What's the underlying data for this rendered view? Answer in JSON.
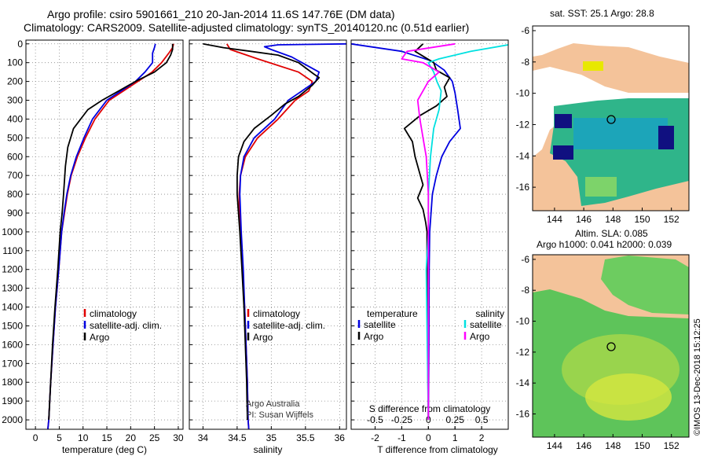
{
  "header": {
    "title_line1": "Argo profile: csiro 5901661_210 20-Jan-2014 11.6S 147.76E (DM data)",
    "title_line2": "Climatology: CARS2009. Satellite-adjusted climatology: synTS_20140120.nc (0.51d earlier)"
  },
  "maps": {
    "sst_title": "sat. SST: 25.1 Argo: 28.8",
    "sla_title1": "Altim. SLA: 0.085",
    "sla_title2": "Argo h1000: 0.041 h2000: 0.039",
    "lon_ticks": [
      "144",
      "146",
      "148",
      "150",
      "152"
    ],
    "lat_ticks": [
      "-6",
      "-8",
      "-10",
      "-12",
      "-14",
      "-16"
    ]
  },
  "credits": {
    "stamp": "©IMOS 13-Dec-2018 15:12:25",
    "line1": "Argo Australia",
    "line2": "PI: Susan Wijffels"
  },
  "colors": {
    "climatology": "#e00000",
    "satellite": "#0000e0",
    "argo": "#000000",
    "salinity_satellite": "#00e0e0",
    "salinity_argo": "#ff00ff"
  },
  "chart_data": [
    {
      "type": "line",
      "xlabel": "temperature (deg C)",
      "ylabel": "depth",
      "xlim": [
        -2,
        31
      ],
      "ylim": [
        2050,
        -20
      ],
      "xticks": [
        "0",
        "5",
        "10",
        "15",
        "20",
        "25",
        "30"
      ],
      "yticks": [
        "0",
        "100",
        "200",
        "300",
        "400",
        "500",
        "600",
        "700",
        "800",
        "900",
        "1000",
        "1100",
        "1200",
        "1300",
        "1400",
        "1500",
        "1600",
        "1700",
        "1800",
        "1900",
        "2000"
      ],
      "legend": [
        "climatology",
        "satellite-adj. clim.",
        "Argo"
      ],
      "series": [
        {
          "name": "climatology",
          "color_key": "climatology",
          "points": [
            [
              29.0,
              0
            ],
            [
              28.8,
              20
            ],
            [
              28.0,
              50
            ],
            [
              26.5,
              100
            ],
            [
              24.5,
              150
            ],
            [
              21.5,
              200
            ],
            [
              18.5,
              250
            ],
            [
              15.5,
              300
            ],
            [
              12.5,
              400
            ],
            [
              10.5,
              500
            ],
            [
              8.8,
              600
            ],
            [
              7.5,
              700
            ],
            [
              6.7,
              800
            ],
            [
              6.1,
              900
            ],
            [
              5.5,
              1000
            ],
            [
              4.9,
              1200
            ],
            [
              4.2,
              1400
            ],
            [
              3.7,
              1600
            ],
            [
              3.2,
              1800
            ],
            [
              2.8,
              2000
            ],
            [
              2.6,
              2050
            ]
          ]
        },
        {
          "name": "satellite-adj. clim.",
          "color_key": "satellite",
          "points": [
            [
              25.2,
              0
            ],
            [
              25.0,
              20
            ],
            [
              24.6,
              50
            ],
            [
              24.6,
              100
            ],
            [
              23.0,
              150
            ],
            [
              21.0,
              200
            ],
            [
              18.0,
              250
            ],
            [
              15.0,
              300
            ],
            [
              12.0,
              400
            ],
            [
              10.2,
              500
            ],
            [
              8.6,
              600
            ],
            [
              7.4,
              700
            ],
            [
              6.6,
              800
            ],
            [
              6.0,
              900
            ],
            [
              5.5,
              1000
            ],
            [
              4.9,
              1200
            ],
            [
              4.2,
              1400
            ],
            [
              3.7,
              1600
            ],
            [
              3.2,
              1800
            ],
            [
              2.8,
              2000
            ],
            [
              2.6,
              2050
            ]
          ]
        },
        {
          "name": "Argo",
          "color_key": "argo",
          "points": [
            [
              28.8,
              0
            ],
            [
              28.8,
              30
            ],
            [
              28.4,
              60
            ],
            [
              27.5,
              100
            ],
            [
              25.0,
              150
            ],
            [
              21.0,
              200
            ],
            [
              17.5,
              250
            ],
            [
              14.0,
              300
            ],
            [
              11.0,
              350
            ],
            [
              8.0,
              450
            ],
            [
              6.8,
              550
            ],
            [
              6.3,
              650
            ],
            [
              5.9,
              800
            ],
            [
              5.6,
              900
            ],
            [
              5.2,
              1000
            ],
            [
              4.7,
              1200
            ],
            [
              4.1,
              1400
            ],
            [
              3.6,
              1600
            ],
            [
              3.2,
              1800
            ],
            [
              2.8,
              2000
            ]
          ]
        }
      ]
    },
    {
      "type": "line",
      "xlabel": "salinity",
      "xlim": [
        33.8,
        36.1
      ],
      "ylim": [
        2050,
        -20
      ],
      "xticks": [
        "34",
        "34.5",
        "35",
        "35.5",
        "36"
      ],
      "legend": [
        "climatology",
        "satellite-adj. clim.",
        "Argo"
      ],
      "series": [
        {
          "name": "climatology",
          "color_key": "climatology",
          "points": [
            [
              34.35,
              0
            ],
            [
              34.4,
              30
            ],
            [
              34.8,
              80
            ],
            [
              35.4,
              150
            ],
            [
              35.6,
              200
            ],
            [
              35.55,
              250
            ],
            [
              35.35,
              300
            ],
            [
              35.1,
              400
            ],
            [
              34.8,
              500
            ],
            [
              34.62,
              600
            ],
            [
              34.55,
              700
            ],
            [
              34.53,
              800
            ],
            [
              34.53,
              900
            ],
            [
              34.55,
              1000
            ],
            [
              34.58,
              1200
            ],
            [
              34.61,
              1400
            ],
            [
              34.63,
              1600
            ],
            [
              34.65,
              1800
            ],
            [
              34.66,
              2000
            ],
            [
              34.67,
              2050
            ]
          ]
        },
        {
          "name": "satellite-adj. clim.",
          "color_key": "satellite",
          "points": [
            [
              36.1,
              0
            ],
            [
              35.1,
              5
            ],
            [
              34.9,
              15
            ],
            [
              35.0,
              30
            ],
            [
              35.3,
              70
            ],
            [
              35.7,
              150
            ],
            [
              35.65,
              200
            ],
            [
              35.45,
              250
            ],
            [
              35.25,
              300
            ],
            [
              35.05,
              400
            ],
            [
              34.75,
              500
            ],
            [
              34.6,
              600
            ],
            [
              34.55,
              700
            ],
            [
              34.54,
              800
            ],
            [
              34.55,
              900
            ],
            [
              34.56,
              1000
            ],
            [
              34.59,
              1200
            ],
            [
              34.61,
              1400
            ],
            [
              34.63,
              1600
            ],
            [
              34.65,
              1800
            ],
            [
              34.66,
              2000
            ],
            [
              34.67,
              2050
            ]
          ]
        },
        {
          "name": "Argo",
          "color_key": "argo",
          "points": [
            [
              34.0,
              0
            ],
            [
              34.3,
              20
            ],
            [
              34.7,
              40
            ],
            [
              35.1,
              60
            ],
            [
              35.4,
              100
            ],
            [
              35.62,
              160
            ],
            [
              35.7,
              180
            ],
            [
              35.6,
              220
            ],
            [
              35.4,
              280
            ],
            [
              35.2,
              320
            ],
            [
              35.0,
              380
            ],
            [
              34.75,
              450
            ],
            [
              34.6,
              520
            ],
            [
              34.52,
              600
            ],
            [
              34.5,
              700
            ],
            [
              34.5,
              800
            ],
            [
              34.52,
              900
            ],
            [
              34.54,
              1000
            ],
            [
              34.57,
              1200
            ],
            [
              34.6,
              1400
            ],
            [
              34.62,
              1600
            ],
            [
              34.64,
              1800
            ],
            [
              34.65,
              2000
            ]
          ]
        }
      ]
    },
    {
      "type": "line",
      "xlabel": "T difference from climatology",
      "x2label": "S difference from climatology",
      "xlim": [
        -2.9,
        3.0
      ],
      "ylim": [
        2050,
        -20
      ],
      "xticks": [
        "-2",
        "-1",
        "0",
        "1",
        "2"
      ],
      "x2lim": [
        -0.725,
        0.75
      ],
      "x2ticks": [
        "-0.5",
        "-0.25",
        "0",
        "0.25",
        "0.5"
      ],
      "legend_left_title": "temperature",
      "legend_right_title": "salinity",
      "legend": [
        "satellite",
        "Argo",
        "satellite",
        "Argo"
      ],
      "series": [
        {
          "name": "temperature satellite",
          "color_key": "satellite",
          "axis": "T",
          "points": [
            [
              -2.9,
              0
            ],
            [
              -1.0,
              40
            ],
            [
              0.1,
              90
            ],
            [
              0.6,
              140
            ],
            [
              0.9,
              200
            ],
            [
              1.0,
              260
            ],
            [
              1.1,
              350
            ],
            [
              1.2,
              450
            ],
            [
              0.8,
              520
            ],
            [
              0.5,
              600
            ],
            [
              0.3,
              700
            ],
            [
              0.15,
              800
            ],
            [
              0.1,
              900
            ],
            [
              0.05,
              1000
            ],
            [
              0.03,
              1200
            ],
            [
              0.02,
              1600
            ],
            [
              0.0,
              2000
            ]
          ]
        },
        {
          "name": "temperature Argo",
          "color_key": "argo",
          "axis": "T",
          "points": [
            [
              -0.2,
              0
            ],
            [
              -0.5,
              40
            ],
            [
              0.2,
              100
            ],
            [
              0.3,
              140
            ],
            [
              0.8,
              180
            ],
            [
              0.6,
              230
            ],
            [
              0.7,
              280
            ],
            [
              0.3,
              330
            ],
            [
              -0.3,
              380
            ],
            [
              -0.9,
              450
            ],
            [
              -0.6,
              520
            ],
            [
              -0.5,
              600
            ],
            [
              -0.3,
              700
            ],
            [
              -0.2,
              750
            ],
            [
              -0.4,
              820
            ],
            [
              -0.2,
              880
            ],
            [
              -0.1,
              950
            ],
            [
              -0.05,
              1000
            ],
            [
              -0.05,
              1200
            ],
            [
              -0.03,
              1600
            ],
            [
              0.0,
              2000
            ]
          ]
        },
        {
          "name": "salinity satellite",
          "color_key": "salinity_satellite",
          "axis": "S",
          "points": [
            [
              0.75,
              5
            ],
            [
              0.4,
              40
            ],
            [
              0.1,
              80
            ],
            [
              0.0,
              100
            ],
            [
              0.05,
              150
            ],
            [
              0.08,
              200
            ],
            [
              0.12,
              250
            ],
            [
              0.1,
              350
            ],
            [
              0.05,
              450
            ],
            [
              0.02,
              600
            ],
            [
              0.0,
              800
            ],
            [
              0.0,
              1000
            ],
            [
              -0.02,
              1200
            ],
            [
              -0.01,
              1600
            ],
            [
              0.0,
              2000
            ]
          ]
        },
        {
          "name": "salinity Argo",
          "color_key": "salinity_argo",
          "axis": "S",
          "points": [
            [
              0.25,
              0
            ],
            [
              -0.2,
              40
            ],
            [
              -0.25,
              80
            ],
            [
              -0.05,
              100
            ],
            [
              0.1,
              150
            ],
            [
              0.0,
              200
            ],
            [
              -0.05,
              250
            ],
            [
              -0.1,
              300
            ],
            [
              -0.08,
              400
            ],
            [
              -0.05,
              500
            ],
            [
              -0.02,
              600
            ],
            [
              0.0,
              800
            ],
            [
              0.0,
              1000
            ],
            [
              0.0,
              1600
            ],
            [
              0.0,
              2000
            ]
          ]
        }
      ]
    }
  ]
}
